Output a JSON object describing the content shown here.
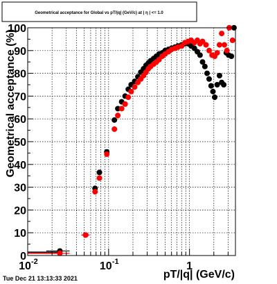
{
  "chart_data": {
    "type": "scatter",
    "title": "Geometrical acceptance for Global vs  pT/|q| (GeV/c) at |  η | <= 1.0",
    "xlabel": "pT/|q| (GeV/c)",
    "ylabel": "Geometrical acceptance (%)",
    "xscale": "log",
    "xlim": [
      0.01,
      3.7
    ],
    "ylim": [
      0,
      100
    ],
    "grid": true,
    "x_ticks": [
      {
        "value": 0.01,
        "label": "10",
        "exp": "-2"
      },
      {
        "value": 0.1,
        "label": "10",
        "exp": "-1"
      },
      {
        "value": 1,
        "label": "1",
        "exp": ""
      }
    ],
    "y_ticks": [
      0,
      10,
      20,
      30,
      40,
      50,
      60,
      70,
      80,
      90,
      100
    ],
    "series": [
      {
        "color": "#000000",
        "points": [
          [
            0.025,
            2.0,
            0.008
          ],
          [
            0.052,
            9.0,
            0.006
          ],
          [
            0.068,
            29.5,
            0.003
          ],
          [
            0.077,
            36.5,
            0.003
          ],
          [
            0.095,
            45.5,
            0.005
          ],
          [
            0.118,
            59.5,
            0.004
          ],
          [
            0.13,
            64.5,
            0.004
          ],
          [
            0.145,
            67.5,
            0.004
          ],
          [
            0.16,
            70.0,
            0.004
          ],
          [
            0.175,
            73.0,
            0.004
          ],
          [
            0.19,
            75.0,
            0.005
          ],
          [
            0.21,
            76.5,
            0.005
          ],
          [
            0.23,
            78.5,
            0.005
          ],
          [
            0.25,
            80.5,
            0.006
          ],
          [
            0.27,
            82.0,
            0.006
          ],
          [
            0.29,
            83.5,
            0.006
          ],
          [
            0.31,
            84.5,
            0.007
          ],
          [
            0.33,
            85.5,
            0.007
          ],
          [
            0.36,
            86.5,
            0.008
          ],
          [
            0.39,
            87.5,
            0.008
          ],
          [
            0.42,
            88.5,
            0.009
          ],
          [
            0.46,
            89.0,
            0.01
          ],
          [
            0.5,
            90.0,
            0.01
          ],
          [
            0.55,
            90.5,
            0.012
          ],
          [
            0.6,
            91.0,
            0.013
          ],
          [
            0.66,
            91.5,
            0.014
          ],
          [
            0.72,
            92.0,
            0.015
          ],
          [
            0.8,
            92.5,
            0.017
          ],
          [
            0.88,
            93.0,
            0.019
          ],
          [
            0.96,
            93.0,
            0.02
          ],
          [
            1.05,
            92.0,
            0.022
          ],
          [
            1.15,
            91.0,
            0.024
          ],
          [
            1.25,
            89.5,
            0.026
          ],
          [
            1.35,
            88.0,
            0.028
          ],
          [
            1.45,
            85.0,
            0.03
          ],
          [
            1.55,
            83.0,
            0.032
          ],
          [
            1.65,
            80.0,
            0.034
          ],
          [
            1.75,
            77.5,
            0.036
          ],
          [
            1.85,
            74.5,
            0.038
          ],
          [
            1.95,
            72.0,
            0.04
          ],
          [
            2.05,
            69.5,
            0.042
          ],
          [
            2.2,
            75.0,
            0.045
          ],
          [
            2.35,
            79.0,
            0.048
          ],
          [
            2.5,
            76.0,
            0.05
          ],
          [
            2.65,
            75.0,
            0.055
          ],
          [
            2.85,
            89.0,
            0.06
          ],
          [
            3.05,
            88.0,
            0.065
          ],
          [
            3.3,
            87.5,
            0.07
          ],
          [
            3.55,
            100.0,
            0.075
          ]
        ]
      },
      {
        "color": "#ff0000",
        "points": [
          [
            0.025,
            1.0,
            0.008
          ],
          [
            0.052,
            9.0,
            0.006
          ],
          [
            0.068,
            28.0,
            0.003
          ],
          [
            0.077,
            34.0,
            0.003
          ],
          [
            0.095,
            44.5,
            0.005
          ],
          [
            0.118,
            55.5,
            0.004
          ],
          [
            0.13,
            61.5,
            0.004
          ],
          [
            0.145,
            64.5,
            0.004
          ],
          [
            0.16,
            66.5,
            0.004
          ],
          [
            0.175,
            69.5,
            0.004
          ],
          [
            0.19,
            72.0,
            0.005
          ],
          [
            0.21,
            74.0,
            0.005
          ],
          [
            0.23,
            76.0,
            0.005
          ],
          [
            0.25,
            77.5,
            0.006
          ],
          [
            0.27,
            79.0,
            0.006
          ],
          [
            0.29,
            80.5,
            0.006
          ],
          [
            0.31,
            82.0,
            0.007
          ],
          [
            0.33,
            83.0,
            0.007
          ],
          [
            0.36,
            84.0,
            0.008
          ],
          [
            0.39,
            85.0,
            0.008
          ],
          [
            0.42,
            86.0,
            0.009
          ],
          [
            0.46,
            87.5,
            0.01
          ],
          [
            0.5,
            88.5,
            0.01
          ],
          [
            0.55,
            89.5,
            0.012
          ],
          [
            0.6,
            90.5,
            0.013
          ],
          [
            0.66,
            91.0,
            0.014
          ],
          [
            0.72,
            91.5,
            0.015
          ],
          [
            0.8,
            92.0,
            0.017
          ],
          [
            0.88,
            93.5,
            0.019
          ],
          [
            0.96,
            94.0,
            0.02
          ],
          [
            1.05,
            94.5,
            0.022
          ],
          [
            1.15,
            93.5,
            0.024
          ],
          [
            1.25,
            94.5,
            0.026
          ],
          [
            1.35,
            93.0,
            0.028
          ],
          [
            1.45,
            94.0,
            0.03
          ],
          [
            1.6,
            92.5,
            0.032
          ],
          [
            1.75,
            90.0,
            0.036
          ],
          [
            1.9,
            88.0,
            0.04
          ],
          [
            2.05,
            87.5,
            0.042
          ],
          [
            2.2,
            89.0,
            0.045
          ],
          [
            2.35,
            92.5,
            0.048
          ],
          [
            2.5,
            97.5,
            0.05
          ],
          [
            2.7,
            92.5,
            0.055
          ],
          [
            2.9,
            90.0,
            0.06
          ],
          [
            3.1,
            100.0,
            0.065
          ],
          [
            3.4,
            94.5,
            0.07
          ]
        ]
      }
    ],
    "low_bins": [
      {
        "color": "#000000",
        "x_from": 0.01,
        "x_to": 0.025,
        "y": 1.5
      },
      {
        "color": "#ff0000",
        "x_from": 0.01,
        "x_to": 0.025,
        "y": 1.0
      }
    ]
  },
  "timestamp": "Tue Dec 21 13:13:33 2021"
}
